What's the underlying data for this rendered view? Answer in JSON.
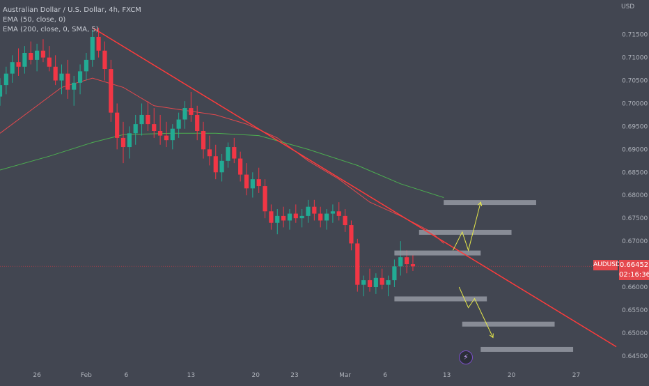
{
  "header": {
    "title": "Australian Dollar / U.S. Dollar, 4h, FXCM",
    "indicators": [
      "EMA (50, close, 0)",
      "EMA (200, close, 0, SMA, 5)"
    ],
    "currency": "USD"
  },
  "price_badge": {
    "symbol": "AUDUSD",
    "price": "0.66452",
    "countdown": "02:16:36"
  },
  "colors": {
    "background": "#424651",
    "up": "#22ab94",
    "down": "#f23645",
    "ema50": "#e5484d",
    "ema200": "#4caf50",
    "trendline": "#ff3b3b",
    "projection": "#e6e84a",
    "zones": "#9a9ea8"
  },
  "chart_data": {
    "type": "candlestick",
    "ylim": [
      0.643,
      0.7195
    ],
    "y_ticks": [
      "0.71500",
      "0.71000",
      "0.70500",
      "0.70000",
      "0.69500",
      "0.69000",
      "0.68500",
      "0.68000",
      "0.67500",
      "0.67000",
      "0.66500",
      "0.66000",
      "0.65500",
      "0.65000",
      "0.64500"
    ],
    "x_ticks": [
      "26",
      "Feb",
      "6",
      "13",
      "20",
      "23",
      "Mar",
      "6",
      "13",
      "20",
      "27"
    ],
    "current_price": 0.66452,
    "series": [
      {
        "name": "EMA (50, close, 0)",
        "values": [
          [
            0,
            0.6935
          ],
          [
            0.05,
            0.6985
          ],
          [
            0.1,
            0.7035
          ],
          [
            0.15,
            0.7055
          ],
          [
            0.2,
            0.7035
          ],
          [
            0.25,
            0.6995
          ],
          [
            0.3,
            0.6985
          ],
          [
            0.35,
            0.6975
          ],
          [
            0.4,
            0.6955
          ],
          [
            0.45,
            0.6925
          ],
          [
            0.5,
            0.6875
          ],
          [
            0.55,
            0.6835
          ],
          [
            0.6,
            0.6785
          ],
          [
            0.65,
            0.6755
          ],
          [
            0.7,
            0.672
          ],
          [
            0.72,
            0.6695
          ]
        ]
      },
      {
        "name": "EMA (200, close, 0, SMA, 5)",
        "values": [
          [
            0,
            0.6855
          ],
          [
            0.08,
            0.6885
          ],
          [
            0.15,
            0.6915
          ],
          [
            0.2,
            0.6932
          ],
          [
            0.28,
            0.6935
          ],
          [
            0.35,
            0.6935
          ],
          [
            0.42,
            0.693
          ],
          [
            0.5,
            0.69
          ],
          [
            0.58,
            0.6865
          ],
          [
            0.65,
            0.6825
          ],
          [
            0.72,
            0.6795
          ]
        ]
      }
    ],
    "candles": [
      [
        0.0,
        0.7015,
        0.7055,
        0.6995,
        0.704
      ],
      [
        0.01,
        0.704,
        0.708,
        0.702,
        0.7065
      ],
      [
        0.02,
        0.7065,
        0.7105,
        0.7045,
        0.709
      ],
      [
        0.03,
        0.709,
        0.712,
        0.706,
        0.708
      ],
      [
        0.04,
        0.708,
        0.7125,
        0.7065,
        0.711
      ],
      [
        0.05,
        0.711,
        0.7135,
        0.7085,
        0.7095
      ],
      [
        0.06,
        0.7095,
        0.713,
        0.707,
        0.7115
      ],
      [
        0.07,
        0.7115,
        0.714,
        0.709,
        0.71
      ],
      [
        0.08,
        0.71,
        0.7125,
        0.707,
        0.708
      ],
      [
        0.09,
        0.708,
        0.7105,
        0.704,
        0.705
      ],
      [
        0.1,
        0.705,
        0.7085,
        0.702,
        0.7065
      ],
      [
        0.11,
        0.7065,
        0.7095,
        0.701,
        0.703
      ],
      [
        0.12,
        0.703,
        0.706,
        0.6995,
        0.7045
      ],
      [
        0.13,
        0.7045,
        0.7085,
        0.702,
        0.707
      ],
      [
        0.14,
        0.707,
        0.711,
        0.705,
        0.7095
      ],
      [
        0.15,
        0.7095,
        0.716,
        0.708,
        0.7145
      ],
      [
        0.16,
        0.7145,
        0.7165,
        0.71,
        0.7115
      ],
      [
        0.17,
        0.7115,
        0.7135,
        0.705,
        0.7075
      ],
      [
        0.18,
        0.7075,
        0.7095,
        0.696,
        0.698
      ],
      [
        0.19,
        0.698,
        0.7,
        0.69,
        0.6925
      ],
      [
        0.2,
        0.6925,
        0.696,
        0.687,
        0.6905
      ],
      [
        0.21,
        0.6905,
        0.695,
        0.688,
        0.6935
      ],
      [
        0.22,
        0.6935,
        0.6975,
        0.691,
        0.6955
      ],
      [
        0.23,
        0.6955,
        0.7,
        0.693,
        0.6975
      ],
      [
        0.24,
        0.6975,
        0.7005,
        0.694,
        0.6955
      ],
      [
        0.25,
        0.6955,
        0.699,
        0.6925,
        0.694
      ],
      [
        0.26,
        0.694,
        0.6975,
        0.691,
        0.693
      ],
      [
        0.27,
        0.693,
        0.696,
        0.6905,
        0.692
      ],
      [
        0.28,
        0.692,
        0.6955,
        0.69,
        0.6945
      ],
      [
        0.29,
        0.6945,
        0.698,
        0.6925,
        0.6965
      ],
      [
        0.3,
        0.6965,
        0.7005,
        0.6945,
        0.699
      ],
      [
        0.31,
        0.699,
        0.7025,
        0.696,
        0.6975
      ],
      [
        0.32,
        0.6975,
        0.6995,
        0.692,
        0.694
      ],
      [
        0.33,
        0.694,
        0.696,
        0.688,
        0.69
      ],
      [
        0.34,
        0.69,
        0.693,
        0.6865,
        0.6885
      ],
      [
        0.35,
        0.6885,
        0.691,
        0.6835,
        0.685
      ],
      [
        0.36,
        0.685,
        0.689,
        0.683,
        0.6875
      ],
      [
        0.37,
        0.6875,
        0.6915,
        0.686,
        0.6905
      ],
      [
        0.38,
        0.6905,
        0.6925,
        0.687,
        0.688
      ],
      [
        0.39,
        0.688,
        0.6895,
        0.683,
        0.6845
      ],
      [
        0.4,
        0.6845,
        0.687,
        0.68,
        0.6815
      ],
      [
        0.41,
        0.6815,
        0.685,
        0.6795,
        0.6835
      ],
      [
        0.42,
        0.6835,
        0.686,
        0.6805,
        0.682
      ],
      [
        0.43,
        0.682,
        0.6835,
        0.675,
        0.6765
      ],
      [
        0.44,
        0.6765,
        0.678,
        0.6725,
        0.674
      ],
      [
        0.45,
        0.674,
        0.677,
        0.6715,
        0.6755
      ],
      [
        0.46,
        0.6755,
        0.6775,
        0.673,
        0.6745
      ],
      [
        0.47,
        0.6745,
        0.677,
        0.6725,
        0.676
      ],
      [
        0.48,
        0.676,
        0.678,
        0.674,
        0.675
      ],
      [
        0.49,
        0.675,
        0.677,
        0.673,
        0.6755
      ],
      [
        0.5,
        0.6755,
        0.679,
        0.674,
        0.6775
      ],
      [
        0.51,
        0.6775,
        0.679,
        0.6745,
        0.676
      ],
      [
        0.52,
        0.676,
        0.6775,
        0.673,
        0.6745
      ],
      [
        0.53,
        0.6745,
        0.677,
        0.6725,
        0.676
      ],
      [
        0.54,
        0.676,
        0.678,
        0.674,
        0.6765
      ],
      [
        0.55,
        0.6765,
        0.6785,
        0.6745,
        0.6755
      ],
      [
        0.56,
        0.6755,
        0.677,
        0.672,
        0.6735
      ],
      [
        0.57,
        0.6735,
        0.6745,
        0.668,
        0.6695
      ],
      [
        0.58,
        0.6695,
        0.6705,
        0.659,
        0.6605
      ],
      [
        0.59,
        0.6605,
        0.6625,
        0.658,
        0.6615
      ],
      [
        0.6,
        0.6615,
        0.664,
        0.659,
        0.66
      ],
      [
        0.61,
        0.66,
        0.663,
        0.6585,
        0.662
      ],
      [
        0.62,
        0.662,
        0.664,
        0.6595,
        0.6605
      ],
      [
        0.63,
        0.6605,
        0.6625,
        0.658,
        0.6615
      ],
      [
        0.64,
        0.6615,
        0.666,
        0.66,
        0.6645
      ],
      [
        0.65,
        0.6645,
        0.67,
        0.6625,
        0.6665
      ],
      [
        0.66,
        0.6665,
        0.668,
        0.663,
        0.665
      ],
      [
        0.67,
        0.665,
        0.667,
        0.6635,
        0.6645
      ]
    ],
    "trendline": [
      [
        0.15,
        0.7165
      ],
      [
        1.0,
        0.647
      ]
    ],
    "zones": [
      {
        "x0": 0.72,
        "x1": 0.87,
        "y": 0.6785
      },
      {
        "x0": 0.68,
        "x1": 0.83,
        "y": 0.672
      },
      {
        "x0": 0.64,
        "x1": 0.78,
        "y": 0.6675
      },
      {
        "x0": 0.64,
        "x1": 0.79,
        "y": 0.6575
      },
      {
        "x0": 0.75,
        "x1": 0.9,
        "y": 0.652
      },
      {
        "x0": 0.78,
        "x1": 0.93,
        "y": 0.6465
      }
    ],
    "projections": [
      [
        [
          0.735,
          0.668
        ],
        [
          0.75,
          0.672
        ],
        [
          0.76,
          0.668
        ],
        [
          0.78,
          0.6785
        ]
      ],
      [
        [
          0.745,
          0.66
        ],
        [
          0.76,
          0.6555
        ],
        [
          0.77,
          0.6575
        ],
        [
          0.8,
          0.649
        ]
      ]
    ]
  }
}
